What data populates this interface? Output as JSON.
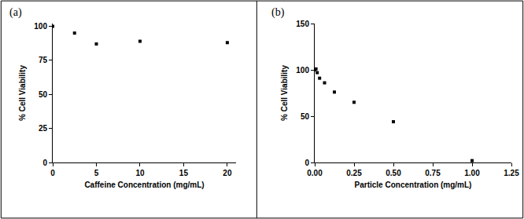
{
  "chart_data": [
    {
      "type": "scatter",
      "annotations": [
        "(a)"
      ],
      "x_label": "Caffeine Concentration (mg/mL)",
      "y_label": "% Cell Viability",
      "x": [
        0,
        2.5,
        5,
        10,
        20
      ],
      "values": [
        100,
        95,
        87,
        89,
        88
      ],
      "color": "#000000",
      "marker": "square",
      "xlim": [
        0,
        21
      ],
      "ylim": [
        0,
        102
      ],
      "xticks": [
        0,
        5,
        10,
        15,
        20
      ],
      "yticks": [
        0,
        25,
        50,
        75,
        100
      ],
      "grid": false
    },
    {
      "type": "scatter",
      "annotations": [
        "(b)"
      ],
      "x_label": "Particle Concentration (mg/mL)",
      "y_label": "% Cell Viability",
      "x": [
        0,
        0.008,
        0.016,
        0.031,
        0.0625,
        0.125,
        0.25,
        0.5,
        1.0
      ],
      "values": [
        100,
        101,
        97,
        91,
        86,
        76,
        65,
        44,
        2
      ],
      "color": "#000000",
      "marker": "square",
      "xlim": [
        0,
        1.25
      ],
      "ylim": [
        0,
        150
      ],
      "xticks": [
        {
          "value": 0,
          "label": "0.00"
        },
        {
          "value": 0.25,
          "label": "0.25"
        },
        {
          "value": 0.5,
          "label": "0.50"
        },
        {
          "value": 0.75,
          "label": "0.75"
        },
        {
          "value": 1,
          "label": "1.00"
        },
        {
          "value": 1.25,
          "label": "1.25"
        }
      ],
      "yticks": [
        0,
        50,
        100,
        150
      ],
      "grid": false
    }
  ]
}
